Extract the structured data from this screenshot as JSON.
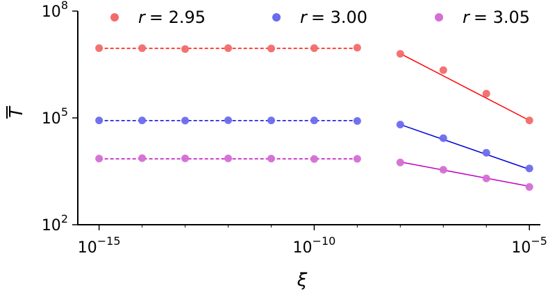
{
  "chart_data": {
    "type": "scatter",
    "xscale": "log",
    "yscale": "log",
    "xlabel": "ξ",
    "ylabel": "T",
    "xlim": [
      3.2e-16,
      1.8e-05
    ],
    "ylim": [
      100,
      100000000
    ],
    "grid": false,
    "legend_position": "top",
    "x_ticks": [
      {
        "base": "10",
        "exp": "−15",
        "value": 1e-15
      },
      {
        "base": "10",
        "exp": "−10",
        "value": 1e-10
      },
      {
        "base": "10",
        "exp": "−5",
        "value": 1e-05
      }
    ],
    "y_ticks": [
      {
        "base": "10",
        "exp": "2",
        "value": 100
      },
      {
        "base": "10",
        "exp": "5",
        "value": 100000
      },
      {
        "base": "10",
        "exp": "8",
        "value": 100000000
      }
    ],
    "series": [
      {
        "name": "r = 2.95",
        "legend_label": "r",
        "legend_value": "= 2.95",
        "color": "#ff0000",
        "marker_color": "#f26b6b",
        "points": [
          {
            "x": 1e-15,
            "y": 9100000
          },
          {
            "x": 1e-14,
            "y": 9100000
          },
          {
            "x": 1e-13,
            "y": 8600000
          },
          {
            "x": 1e-12,
            "y": 9100000
          },
          {
            "x": 1e-11,
            "y": 8900000
          },
          {
            "x": 1e-10,
            "y": 9100000
          },
          {
            "x": 1e-09,
            "y": 9400000
          },
          {
            "x": 1e-08,
            "y": 6300000
          },
          {
            "x": 1e-07,
            "y": 2200000
          },
          {
            "x": 1e-06,
            "y": 480000
          },
          {
            "x": 1e-05,
            "y": 85000
          }
        ],
        "fit_flat": {
          "x": [
            1e-15,
            1e-09
          ],
          "y": 9000000
        },
        "fit_power": {
          "x": [
            1e-08,
            1e-05
          ],
          "y": [
            6400000,
            85000
          ]
        }
      },
      {
        "name": "r = 3.00",
        "legend_label": "r",
        "legend_value": "= 3.00",
        "color": "#0000dd",
        "marker_color": "#6b6bee",
        "points": [
          {
            "x": 1e-15,
            "y": 85000
          },
          {
            "x": 1e-14,
            "y": 85000
          },
          {
            "x": 1e-13,
            "y": 84000
          },
          {
            "x": 1e-12,
            "y": 86000
          },
          {
            "x": 1e-11,
            "y": 85000
          },
          {
            "x": 1e-10,
            "y": 85000
          },
          {
            "x": 1e-09,
            "y": 82000
          },
          {
            "x": 1e-08,
            "y": 65000
          },
          {
            "x": 1e-07,
            "y": 27000
          },
          {
            "x": 1e-06,
            "y": 10500
          },
          {
            "x": 1e-05,
            "y": 3800
          }
        ],
        "fit_flat": {
          "x": [
            1e-15,
            1e-09
          ],
          "y": 84000
        },
        "fit_power": {
          "x": [
            1e-08,
            1e-05
          ],
          "y": [
            65000,
            3600
          ]
        }
      },
      {
        "name": "r = 3.05",
        "legend_label": "r",
        "legend_value": "= 3.05",
        "color": "#c000c0",
        "marker_color": "#d46ed4",
        "points": [
          {
            "x": 1e-15,
            "y": 7200
          },
          {
            "x": 1e-14,
            "y": 7400
          },
          {
            "x": 1e-13,
            "y": 7300
          },
          {
            "x": 1e-12,
            "y": 7300
          },
          {
            "x": 1e-11,
            "y": 7200
          },
          {
            "x": 1e-10,
            "y": 7000
          },
          {
            "x": 1e-09,
            "y": 7100
          },
          {
            "x": 1e-08,
            "y": 5600
          },
          {
            "x": 1e-07,
            "y": 3500
          },
          {
            "x": 1e-06,
            "y": 2000
          },
          {
            "x": 1e-05,
            "y": 1150
          }
        ],
        "fit_flat": {
          "x": [
            1e-15,
            1e-09
          ],
          "y": 7100
        },
        "fit_power": {
          "x": [
            1e-08,
            1e-05
          ],
          "y": [
            5800,
            1200
          ]
        }
      }
    ]
  }
}
